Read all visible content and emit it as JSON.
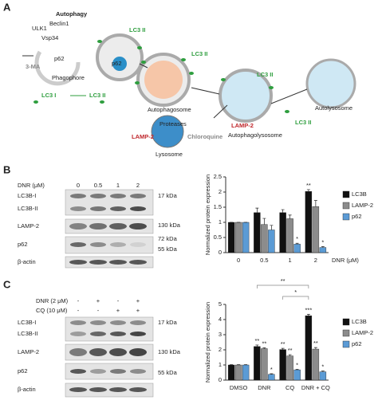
{
  "panel_labels": [
    "A",
    "B",
    "C"
  ],
  "diagram": {
    "labels": [
      "Autophagy",
      "ULK1",
      "Beclin1",
      "Vsp34",
      "3-MA",
      "p62",
      "Phagophore",
      "LC3 I",
      "LC3 II",
      "LC3 II",
      "p62",
      "LC3 II",
      "Autophagosome",
      "LAMP-2",
      "Proteases",
      "Lysosome",
      "Chloroquine",
      "LC3 II",
      "LAMP-2",
      "Autophagolysosome",
      "LC3 II",
      "Autolysosome"
    ]
  },
  "blot_b": {
    "treatment": "DNR (μM)",
    "lanes": [
      "0",
      "0.5",
      "1",
      "2"
    ],
    "rows": [
      "LC3B-I",
      "LC3B-II",
      "LAMP-2",
      "p62",
      "β-actin"
    ],
    "markers": [
      "17 kDa",
      "130 kDa",
      "72 kDa",
      "55 kDa"
    ]
  },
  "blot_c": {
    "treatments": [
      {
        "name": "DNR (2 μM)",
        "lanes": [
          "-",
          "+",
          "-",
          "+"
        ]
      },
      {
        "name": "CQ (10 μM)",
        "lanes": [
          "-",
          "-",
          "+",
          "+"
        ]
      }
    ],
    "rows": [
      "LC3B-I",
      "LC3B-II",
      "LAMP-2",
      "p62",
      "β-actin"
    ],
    "markers": [
      "17 kDa",
      "130 kDa",
      "55 kDa"
    ]
  },
  "chart_data": [
    {
      "type": "bar",
      "ylabel": "Normalized protein expression",
      "xlabel": "DNR (μM)",
      "categories": [
        "0",
        "0.5",
        "1",
        "2"
      ],
      "ylim": [
        0,
        2.5
      ],
      "yticks": [
        0,
        0.5,
        1,
        1.5,
        2,
        2.5
      ],
      "series": [
        {
          "name": "LC3B",
          "color": "#111111",
          "values": [
            1,
            1.32,
            1.32,
            2.02
          ],
          "errors": [
            0,
            0.15,
            0.1,
            0.06
          ],
          "significance": [
            null,
            null,
            null,
            "**"
          ]
        },
        {
          "name": "LAMP-2",
          "color": "#8c8c8c",
          "values": [
            1,
            0.93,
            1.12,
            1.52
          ],
          "errors": [
            0,
            0.2,
            0.12,
            0.2
          ],
          "significance": [
            null,
            null,
            null,
            null
          ]
        },
        {
          "name": "p62",
          "color": "#5b9bd5",
          "values": [
            1,
            0.75,
            0.28,
            0.17
          ],
          "errors": [
            0,
            0.15,
            0.03,
            0.03
          ],
          "significance": [
            null,
            null,
            "*",
            "*"
          ]
        }
      ]
    },
    {
      "type": "bar",
      "ylabel": "Normalized protein expression",
      "categories": [
        "DMSO",
        "DNR",
        "CQ",
        "DNR + CQ"
      ],
      "ylim": [
        0,
        5
      ],
      "yticks": [
        0,
        1,
        2,
        3,
        4,
        5
      ],
      "comparisons": [
        {
          "label": "**"
        },
        {
          "label": "*"
        }
      ],
      "series": [
        {
          "name": "LC3B",
          "color": "#111111",
          "values": [
            1,
            2.22,
            2.02,
            4.25
          ],
          "errors": [
            0.02,
            0.1,
            0.08,
            0.1
          ],
          "significance": [
            null,
            "**",
            "**",
            "***"
          ]
        },
        {
          "name": "LAMP-2",
          "color": "#8c8c8c",
          "values": [
            1,
            2.08,
            1.6,
            2.05
          ],
          "errors": [
            0.02,
            0.05,
            0.08,
            0.1
          ],
          "significance": [
            null,
            "**",
            "**",
            "**"
          ]
        },
        {
          "name": "p62",
          "color": "#5b9bd5",
          "values": [
            1,
            0.38,
            0.68,
            0.55
          ],
          "errors": [
            0.02,
            0.04,
            0.04,
            0.05
          ],
          "significance": [
            null,
            "*",
            "*",
            "*"
          ]
        }
      ]
    }
  ]
}
